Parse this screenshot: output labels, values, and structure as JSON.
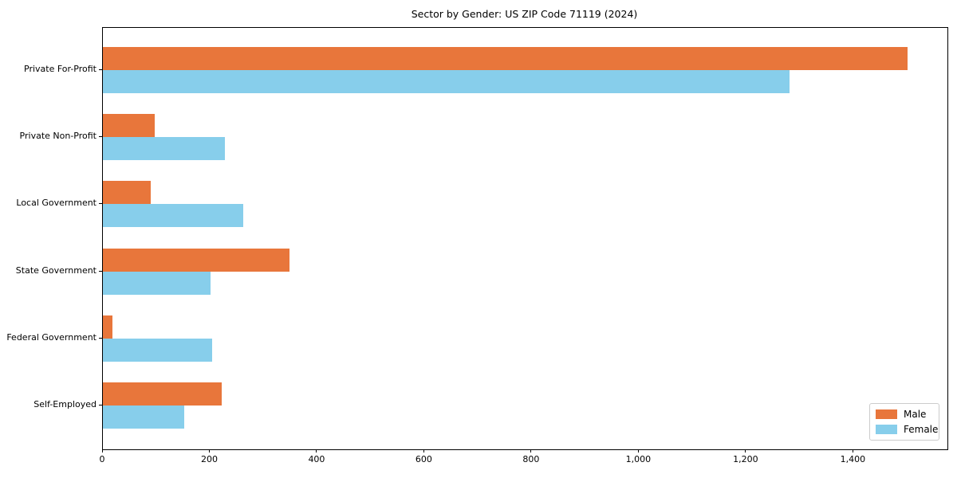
{
  "chart_data": {
    "type": "bar",
    "orientation": "horizontal",
    "title": "Sector by Gender: US ZIP Code 71119 (2024)",
    "categories": [
      "Private For-Profit",
      "Private Non-Profit",
      "Local Government",
      "State Government",
      "Federal Government",
      "Self-Employed"
    ],
    "series": [
      {
        "name": "Male",
        "color": "#e8763b",
        "values": [
          1500,
          97,
          89,
          348,
          18,
          222
        ]
      },
      {
        "name": "Female",
        "color": "#87ceeb",
        "values": [
          1280,
          228,
          262,
          201,
          204,
          152
        ]
      }
    ],
    "xlabel": "",
    "ylabel": "",
    "xlim": [
      0,
      1575
    ],
    "x_ticks": [
      0,
      200,
      400,
      600,
      800,
      1000,
      1200,
      1400
    ],
    "x_tick_labels": [
      "0",
      "200",
      "400",
      "600",
      "800",
      "1,000",
      "1,200",
      "1,400"
    ],
    "grid": false,
    "legend": {
      "position": "lower right",
      "entries": [
        "Male",
        "Female"
      ]
    },
    "colors": {
      "male": "#e8763b",
      "female": "#87ceeb",
      "spine": "#000000",
      "legend_border": "#cccccc",
      "text": "#000000",
      "background": "#ffffff"
    }
  }
}
